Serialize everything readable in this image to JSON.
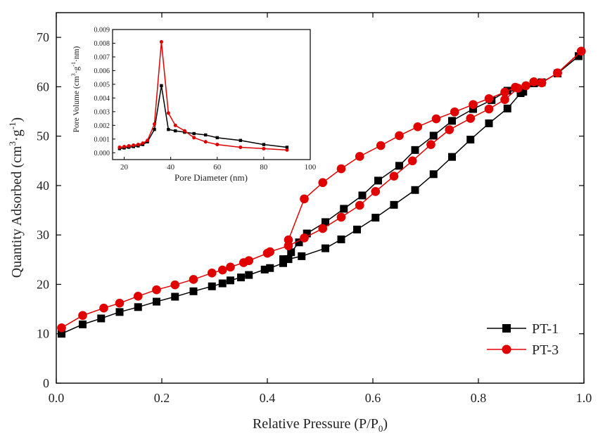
{
  "chart_data": [
    {
      "type": "line",
      "xlabel": "Relative Pressure (P/P",
      "xlabel_sub": "0",
      "xlabel_end": ")",
      "ylabel": "Quantity Adsorbed (cm",
      "ylabel_sup1": "3",
      "ylabel_mid": "·g",
      "ylabel_sup2": "-1",
      "ylabel_end": ")",
      "xlim": [
        0.0,
        1.0
      ],
      "ylim": [
        0,
        75
      ],
      "x_ticks": [
        "0.0",
        "0.2",
        "0.4",
        "0.6",
        "0.8",
        "1.0"
      ],
      "y_ticks": [
        "0",
        "10",
        "20",
        "30",
        "40",
        "50",
        "60",
        "70"
      ],
      "legend_position": "bottom-right",
      "series": [
        {
          "name": "PT-1",
          "color": "#000000",
          "marker": "square",
          "adsorption": {
            "x": [
              0.01,
              0.05,
              0.085,
              0.12,
              0.155,
              0.19,
              0.225,
              0.26,
              0.295,
              0.315,
              0.33,
              0.35,
              0.365,
              0.395,
              0.405,
              0.43,
              0.44,
              0.465,
              0.51,
              0.54,
              0.57,
              0.605,
              0.64,
              0.68,
              0.715,
              0.75,
              0.785,
              0.82,
              0.855,
              0.88,
              0.905,
              0.92,
              0.95,
              0.99
            ],
            "y": [
              10.0,
              11.9,
              13.1,
              14.4,
              15.4,
              16.5,
              17.5,
              18.6,
              19.6,
              20.2,
              20.8,
              21.4,
              21.9,
              23.0,
              23.3,
              24.3,
              25.1,
              25.7,
              27.3,
              29.1,
              31.1,
              33.5,
              36.1,
              39.1,
              42.3,
              45.8,
              49.3,
              52.6,
              55.6,
              58.7,
              60.7,
              60.9,
              62.7,
              66.2
            ]
          },
          "desorption": {
            "x": [
              0.99,
              0.95,
              0.92,
              0.905,
              0.885,
              0.855,
              0.825,
              0.79,
              0.75,
              0.715,
              0.68,
              0.65,
              0.61,
              0.58,
              0.545,
              0.51,
              0.475,
              0.46,
              0.445,
              0.43
            ],
            "y": [
              66.2,
              62.7,
              60.9,
              60.7,
              59.0,
              59.2,
              57.3,
              55.5,
              53.1,
              50.1,
              47.2,
              44.0,
              41.0,
              38.0,
              35.3,
              32.6,
              30.3,
              28.5,
              26.5,
              25.1
            ]
          }
        },
        {
          "name": "PT-3",
          "color": "#e00000",
          "marker": "circle",
          "adsorption": {
            "x": [
              0.01,
              0.05,
              0.09,
              0.12,
              0.155,
              0.19,
              0.225,
              0.26,
              0.295,
              0.315,
              0.33,
              0.355,
              0.365,
              0.4,
              0.405,
              0.44,
              0.47,
              0.505,
              0.54,
              0.575,
              0.605,
              0.64,
              0.675,
              0.71,
              0.745,
              0.785,
              0.82,
              0.85,
              0.875,
              0.905,
              0.92,
              0.95,
              0.995
            ],
            "y": [
              11.2,
              13.7,
              15.2,
              16.2,
              17.6,
              18.9,
              19.9,
              21.0,
              22.3,
              22.9,
              23.5,
              24.4,
              24.8,
              26.3,
              26.6,
              27.8,
              29.4,
              31.3,
              33.6,
              36.0,
              38.8,
              41.9,
              45.0,
              48.3,
              51.3,
              53.6,
              55.5,
              57.4,
              59.7,
              61.0,
              60.8,
              62.8,
              67.2
            ]
          },
          "desorption": {
            "x": [
              0.995,
              0.95,
              0.92,
              0.89,
              0.87,
              0.85,
              0.82,
              0.79,
              0.755,
              0.72,
              0.685,
              0.65,
              0.615,
              0.575,
              0.54,
              0.505,
              0.47,
              0.44
            ],
            "y": [
              67.2,
              62.8,
              60.8,
              60.2,
              59.9,
              58.9,
              57.6,
              56.4,
              54.9,
              53.5,
              51.9,
              50.1,
              48.1,
              45.9,
              43.4,
              40.6,
              37.3,
              29.0
            ]
          }
        }
      ]
    },
    {
      "type": "line",
      "inset": true,
      "xlabel": "Pore Diameter (nm)",
      "ylabel": "Pore Volume (cm",
      "ylabel_sup1": "3",
      "ylabel_mid": "·g",
      "ylabel_sup2": "-1",
      "ylabel_end": "·nm)",
      "xlim": [
        15,
        100
      ],
      "ylim": [
        -0.0005,
        0.009
      ],
      "x_ticks": [
        "20",
        "40",
        "60",
        "80",
        "100"
      ],
      "x_tick_values": [
        20,
        40,
        60,
        80,
        100
      ],
      "y_ticks": [
        "0.000",
        "0.001",
        "0.002",
        "0.003",
        "0.004",
        "0.005",
        "0.006",
        "0.007",
        "0.008",
        "0.009"
      ],
      "y_tick_values": [
        0,
        0.001,
        0.002,
        0.003,
        0.004,
        0.005,
        0.006,
        0.007,
        0.008,
        0.009
      ],
      "series": [
        {
          "name": "PT-1",
          "color": "#000000",
          "marker": "square",
          "x": [
            18,
            20,
            22,
            24,
            26,
            28,
            30,
            33,
            36,
            39,
            42,
            46,
            50,
            55,
            60,
            70,
            80,
            90
          ],
          "y": [
            0.0003,
            0.00035,
            0.0004,
            0.00045,
            0.0005,
            0.0006,
            0.0008,
            0.0017,
            0.0049,
            0.0017,
            0.0016,
            0.0015,
            0.0014,
            0.0013,
            0.0011,
            0.0009,
            0.0006,
            0.0004
          ]
        },
        {
          "name": "PT-3",
          "color": "#e00000",
          "marker": "circle",
          "x": [
            18,
            20,
            22,
            24,
            26,
            28,
            30,
            33,
            36,
            39,
            42,
            46,
            50,
            55,
            60,
            70,
            80,
            90
          ],
          "y": [
            0.0004,
            0.00045,
            0.0005,
            0.00055,
            0.0006,
            0.0007,
            0.0009,
            0.0021,
            0.0081,
            0.0029,
            0.002,
            0.0016,
            0.0011,
            0.0008,
            0.0006,
            0.0004,
            0.0003,
            0.0002
          ]
        }
      ]
    }
  ]
}
